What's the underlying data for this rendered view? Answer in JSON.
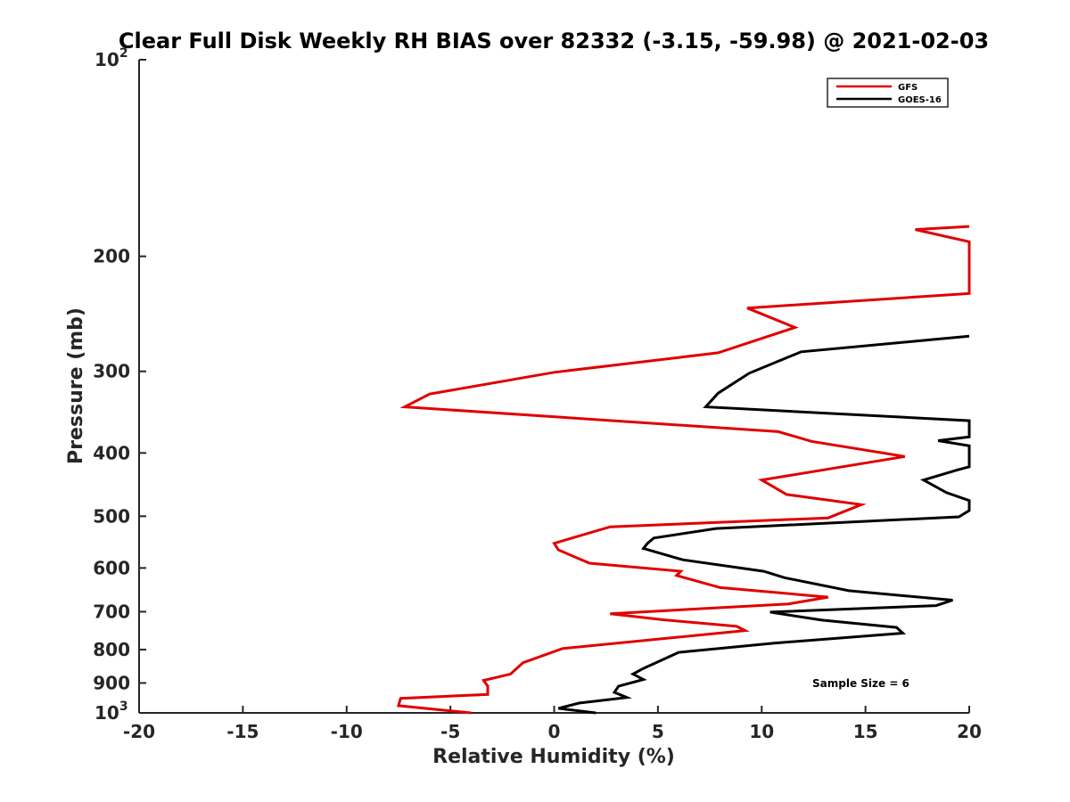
{
  "chart_data": {
    "type": "line",
    "title": "Clear Full Disk Weekly RH BIAS over 82332 (-3.15, -59.98) @ 2021-02-03",
    "xlabel": "Relative Humidity (%)",
    "ylabel": "Pressure (mb)",
    "xlim": [
      -20,
      20
    ],
    "ylim": [
      100,
      1000
    ],
    "y_scale": "log",
    "y_reversed": true,
    "grid": false,
    "legend_position": "top-right",
    "x_ticks": [
      "-20",
      "-15",
      "-10",
      "-5",
      "0",
      "5",
      "10",
      "15",
      "20"
    ],
    "y_ticks": [
      {
        "base": "10",
        "exp": "2"
      },
      {
        "base": "200",
        "exp": ""
      },
      {
        "base": "300",
        "exp": ""
      },
      {
        "base": "400",
        "exp": ""
      },
      {
        "base": "500",
        "exp": ""
      },
      {
        "base": "600",
        "exp": ""
      },
      {
        "base": "700",
        "exp": ""
      },
      {
        "base": "800",
        "exp": ""
      },
      {
        "base": "900",
        "exp": ""
      },
      {
        "base": "10",
        "exp": "3"
      }
    ],
    "annotation": "Sample Size = 6",
    "series": [
      {
        "name": "GFS",
        "color": "#e00000",
        "points": [
          [
            20.0,
            180
          ],
          [
            17.4,
            182
          ],
          [
            20.0,
            190
          ],
          [
            20.0,
            228
          ],
          [
            9.3,
            240
          ],
          [
            11.6,
            257
          ],
          [
            7.9,
            281
          ],
          [
            0.0,
            301
          ],
          [
            -6.0,
            325
          ],
          [
            -7.2,
            340
          ],
          [
            10.8,
            371
          ],
          [
            12.4,
            384
          ],
          [
            16.9,
            405
          ],
          [
            10.0,
            440
          ],
          [
            11.2,
            463
          ],
          [
            14.8,
            480
          ],
          [
            13.2,
            503
          ],
          [
            2.7,
            519
          ],
          [
            0.0,
            550
          ],
          [
            0.2,
            563
          ],
          [
            1.7,
            590
          ],
          [
            6.1,
            607
          ],
          [
            5.9,
            616
          ],
          [
            8.0,
            643
          ],
          [
            13.2,
            665
          ],
          [
            11.3,
            681
          ],
          [
            2.7,
            705
          ],
          [
            5.2,
            720
          ],
          [
            8.8,
            737
          ],
          [
            9.2,
            748
          ],
          [
            0.4,
            797
          ],
          [
            -1.5,
            838
          ],
          [
            -2.1,
            872
          ],
          [
            -3.4,
            892
          ],
          [
            -3.2,
            910
          ],
          [
            -3.2,
            937
          ],
          [
            -7.4,
            950
          ],
          [
            -7.5,
            975
          ],
          [
            -4.0,
            1000
          ]
        ]
      },
      {
        "name": "GOES-16",
        "color": "#000000",
        "points": [
          [
            20.0,
            265
          ],
          [
            11.9,
            280
          ],
          [
            9.4,
            302
          ],
          [
            7.9,
            324
          ],
          [
            7.3,
            340
          ],
          [
            20.0,
            357
          ],
          [
            20.0,
            378
          ],
          [
            18.5,
            383
          ],
          [
            20.0,
            390
          ],
          [
            20.0,
            420
          ],
          [
            19.4,
            425
          ],
          [
            17.8,
            440
          ],
          [
            18.9,
            460
          ],
          [
            20.0,
            473
          ],
          [
            20.0,
            490
          ],
          [
            19.5,
            501
          ],
          [
            7.8,
            522
          ],
          [
            4.8,
            540
          ],
          [
            4.5,
            550
          ],
          [
            4.3,
            560
          ],
          [
            6.2,
            583
          ],
          [
            10.1,
            607
          ],
          [
            11.1,
            621
          ],
          [
            14.2,
            650
          ],
          [
            19.2,
            672
          ],
          [
            18.4,
            685
          ],
          [
            10.4,
            701
          ],
          [
            12.9,
            721
          ],
          [
            16.5,
            740
          ],
          [
            16.8,
            755
          ],
          [
            10.6,
            782
          ],
          [
            6.0,
            808
          ],
          [
            4.3,
            855
          ],
          [
            3.8,
            872
          ],
          [
            4.3,
            889
          ],
          [
            3.1,
            910
          ],
          [
            2.9,
            930
          ],
          [
            3.5,
            947
          ],
          [
            1.2,
            966
          ],
          [
            0.2,
            984
          ],
          [
            2.0,
            1000
          ]
        ]
      }
    ]
  }
}
